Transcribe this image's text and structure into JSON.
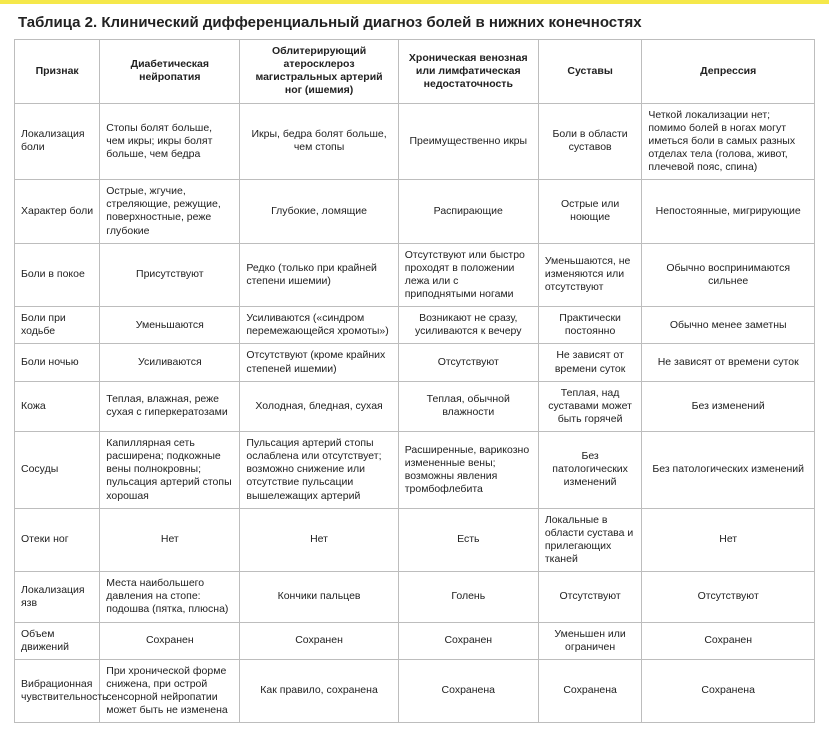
{
  "title": "Таблица 2. Клинический дифференциальный диагноз болей в нижних конечностях",
  "columns": [
    "Признак",
    "Диабетическая нейропатия",
    "Облитерирующий атеросклероз магистральных артерий ног (ишемия)",
    "Хроническая венозная или лимфатическая недостаточность",
    "Суставы",
    "Депрессия"
  ],
  "rows": [
    {
      "label": "Локализация боли",
      "cells": [
        "Стопы болят больше, чем икры; икры болят больше, чем бедра",
        "Икры, бедра болят больше, чем стопы",
        "Преимущественно икры",
        "Боли в области суставов",
        "Четкой локализации нет; помимо болей в ногах могут иметься боли в самых разных отделах тела (голова, живот, плечевой пояс, спина)"
      ]
    },
    {
      "label": "Характер боли",
      "cells": [
        "Острые, жгучие, стреляющие, режущие, поверхностные, реже глубокие",
        "Глубокие, ломящие",
        "Распирающие",
        "Острые или ноющие",
        "Непостоянные, мигрирующие"
      ]
    },
    {
      "label": "Боли в покое",
      "cells": [
        "Присутствуют",
        "Редко (только при крайней степени ишемии)",
        "Отсутствуют или быстро проходят в положении лежа или с приподнятыми ногами",
        "Уменьшаются, не изменяются или отсутствуют",
        "Обычно воспринимаются сильнее"
      ]
    },
    {
      "label": "Боли при ходьбе",
      "cells": [
        "Уменьшаются",
        "Усиливаются («синдром перемежающейся хромоты»)",
        "Возникают не сразу, усиливаются к вечеру",
        "Практически постоянно",
        "Обычно менее заметны"
      ]
    },
    {
      "label": "Боли ночью",
      "cells": [
        "Усиливаются",
        "Отсутствуют (кроме крайних степеней ишемии)",
        "Отсутствуют",
        "Не зависят от времени суток",
        "Не зависят от времени суток"
      ]
    },
    {
      "label": "Кожа",
      "cells": [
        "Теплая, влажная, реже сухая с гиперкератозами",
        "Холодная, бледная, сухая",
        "Теплая, обычной влажности",
        "Теплая, над суставами может быть горячей",
        "Без изменений"
      ]
    },
    {
      "label": "Сосуды",
      "cells": [
        "Капиллярная сеть расширена; подкожные вены полнокровны; пульсация артерий стопы хорошая",
        "Пульсация артерий стопы ослаблена или отсутствует; возможно снижение или отсутствие пульсации вышележащих артерий",
        "Расширенные, варикозно измененные вены; возможны явления тромбофлебита",
        "Без патологических изменений",
        "Без патологических изменений"
      ]
    },
    {
      "label": "Отеки ног",
      "cells": [
        "Нет",
        "Нет",
        "Есть",
        "Локальные в области сустава и прилегающих тканей",
        "Нет"
      ]
    },
    {
      "label": "Локализация язв",
      "cells": [
        "Места наибольшего давления на стопе: подошва (пятка, плюсна)",
        "Кончики пальцев",
        "Голень",
        "Отсутствуют",
        "Отсутствуют"
      ]
    },
    {
      "label": "Объем движений",
      "cells": [
        "Сохранен",
        "Сохранен",
        "Сохранен",
        "Уменьшен или ограничен",
        "Сохранен"
      ]
    },
    {
      "label": "Вибрационная чувствительность",
      "cells": [
        "При хронической форме снижена, при острой сенсорной нейропатии может быть не изменена",
        "Как правило, сохранена",
        "Сохранена",
        "Сохранена",
        "Сохранена"
      ]
    }
  ],
  "colors": {
    "accent": "#f5e84a",
    "border": "#bdbdbd",
    "text": "#222222",
    "background": "#ffffff"
  }
}
